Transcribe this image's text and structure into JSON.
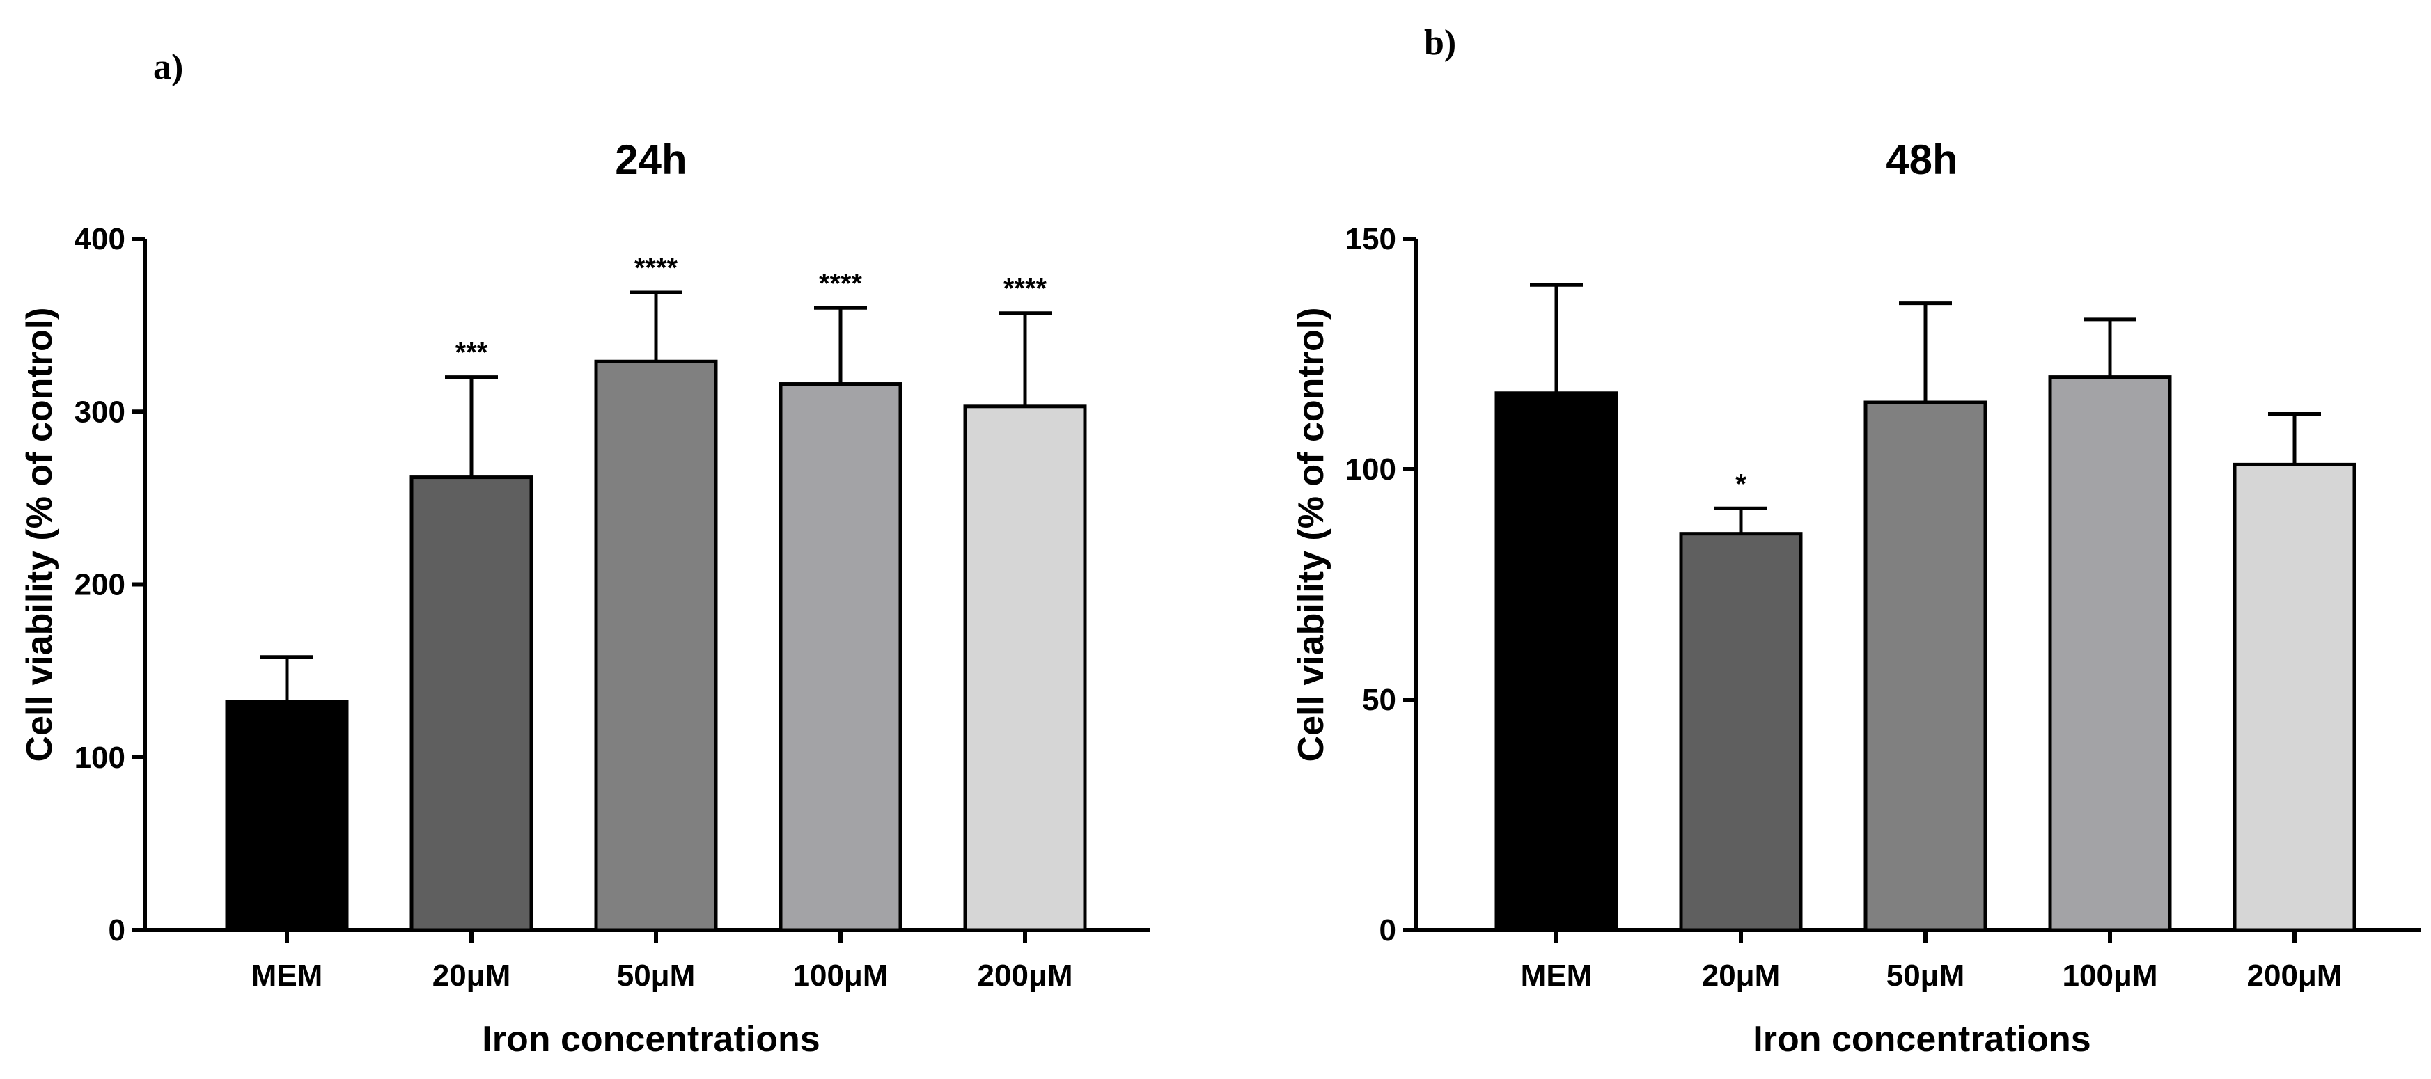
{
  "chart_data": [
    {
      "panel_label": "a)",
      "type": "bar",
      "title": "24h",
      "xlabel": "Iron concentrations",
      "ylabel": "Cell viability (% of control)",
      "ylim": [
        0,
        400
      ],
      "yticks": [
        0,
        100,
        200,
        300,
        400
      ],
      "categories": [
        "MEM",
        "20μM",
        "50μM",
        "100μM",
        "200μM"
      ],
      "values": [
        132,
        262,
        329,
        316,
        303
      ],
      "errors": [
        26,
        58,
        40,
        44,
        54
      ],
      "significance": [
        "",
        "***",
        "****",
        "****",
        "****"
      ],
      "colors": [
        "#000000",
        "#5f5f5f",
        "#808080",
        "#a3a3a6",
        "#d6d6d6"
      ]
    },
    {
      "panel_label": "b)",
      "type": "bar",
      "title": "48h",
      "xlabel": "Iron concentrations",
      "ylabel": "Cell viability (% of control)",
      "ylim": [
        0,
        150
      ],
      "yticks": [
        0,
        50,
        100,
        150
      ],
      "categories": [
        "MEM",
        "20μM",
        "50μM",
        "100μM",
        "200μM"
      ],
      "values": [
        116.5,
        86,
        114.5,
        120,
        101
      ],
      "errors": [
        23.5,
        5.5,
        21.5,
        12.5,
        11
      ],
      "significance": [
        "",
        "*",
        "",
        "",
        ""
      ],
      "colors": [
        "#000000",
        "#5f5f5f",
        "#808080",
        "#a3a3a6",
        "#d6d6d6"
      ]
    }
  ]
}
